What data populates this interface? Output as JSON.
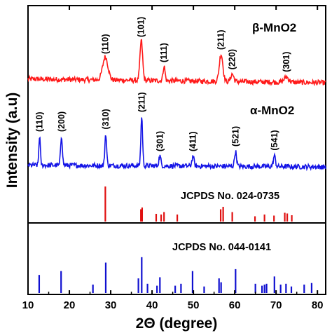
{
  "chart_data": {
    "type": "line",
    "xlabel": "2Θ (degree)",
    "ylabel": "Intensity (a.u)",
    "xlim": [
      10,
      82
    ],
    "xticks": [
      10,
      20,
      30,
      40,
      50,
      60,
      70,
      80
    ],
    "series": [
      {
        "name": "β-MnO2",
        "color": "#ff1a1a",
        "baseline": 0.0,
        "noise": 0.06,
        "peaks": [
          {
            "x": 28.7,
            "h": 0.55,
            "w": 0.9
          },
          {
            "x": 37.4,
            "h": 0.95,
            "w": 0.45
          },
          {
            "x": 42.9,
            "h": 0.35,
            "w": 0.35
          },
          {
            "x": 56.7,
            "h": 0.65,
            "w": 0.6
          },
          {
            "x": 59.4,
            "h": 0.18,
            "w": 0.5
          },
          {
            "x": 72.5,
            "h": 0.12,
            "w": 0.8
          }
        ],
        "annotations": [
          {
            "x": 28.7,
            "label": "(110)"
          },
          {
            "x": 37.4,
            "label": "(101)"
          },
          {
            "x": 42.9,
            "label": "(111)"
          },
          {
            "x": 56.7,
            "label": "(211)"
          },
          {
            "x": 59.4,
            "label": "(220)"
          },
          {
            "x": 72.5,
            "label": "(301)"
          }
        ]
      },
      {
        "name": "α-MnO2",
        "color": "#1414e6",
        "baseline": 0.0,
        "noise": 0.05,
        "peaks": [
          {
            "x": 12.8,
            "h": 0.6,
            "w": 0.25
          },
          {
            "x": 18.1,
            "h": 0.6,
            "w": 0.3
          },
          {
            "x": 28.8,
            "h": 0.65,
            "w": 0.3
          },
          {
            "x": 37.5,
            "h": 1.0,
            "w": 0.3
          },
          {
            "x": 41.9,
            "h": 0.2,
            "w": 0.35
          },
          {
            "x": 49.9,
            "h": 0.2,
            "w": 0.35
          },
          {
            "x": 60.2,
            "h": 0.3,
            "w": 0.35
          },
          {
            "x": 69.6,
            "h": 0.22,
            "w": 0.35
          }
        ],
        "annotations": [
          {
            "x": 12.8,
            "label": "(110)"
          },
          {
            "x": 18.1,
            "label": "(200)"
          },
          {
            "x": 28.8,
            "label": "(310)"
          },
          {
            "x": 37.5,
            "label": "(211)"
          },
          {
            "x": 41.9,
            "label": "(301)"
          },
          {
            "x": 49.9,
            "label": "(411)"
          },
          {
            "x": 60.2,
            "label": "(521)"
          },
          {
            "x": 69.6,
            "label": "(541)"
          }
        ]
      }
    ],
    "reference_patterns": [
      {
        "name": "JCPDS No. 024-0735",
        "color": "#e01010",
        "lines": [
          {
            "x": 28.7,
            "h": 1.0
          },
          {
            "x": 37.3,
            "h": 0.35
          },
          {
            "x": 37.6,
            "h": 0.4
          },
          {
            "x": 41.0,
            "h": 0.22
          },
          {
            "x": 42.2,
            "h": 0.2
          },
          {
            "x": 42.9,
            "h": 0.27
          },
          {
            "x": 46.1,
            "h": 0.2
          },
          {
            "x": 56.6,
            "h": 0.35
          },
          {
            "x": 57.2,
            "h": 0.42
          },
          {
            "x": 59.4,
            "h": 0.27
          },
          {
            "x": 64.9,
            "h": 0.15
          },
          {
            "x": 67.2,
            "h": 0.2
          },
          {
            "x": 69.5,
            "h": 0.17
          },
          {
            "x": 72.1,
            "h": 0.25
          },
          {
            "x": 72.7,
            "h": 0.23
          },
          {
            "x": 73.8,
            "h": 0.18
          }
        ]
      },
      {
        "name": "JCPDS No. 044-0141",
        "color": "#1010d0",
        "lines": [
          {
            "x": 12.7,
            "h": 0.47
          },
          {
            "x": 18.0,
            "h": 0.57
          },
          {
            "x": 25.7,
            "h": 0.22
          },
          {
            "x": 28.8,
            "h": 0.79
          },
          {
            "x": 36.7,
            "h": 0.38
          },
          {
            "x": 37.5,
            "h": 0.93
          },
          {
            "x": 38.9,
            "h": 0.24
          },
          {
            "x": 41.2,
            "h": 0.19
          },
          {
            "x": 41.9,
            "h": 0.41
          },
          {
            "x": 45.6,
            "h": 0.19
          },
          {
            "x": 47.0,
            "h": 0.24
          },
          {
            "x": 49.8,
            "h": 0.57
          },
          {
            "x": 52.6,
            "h": 0.17
          },
          {
            "x": 56.2,
            "h": 0.38
          },
          {
            "x": 56.7,
            "h": 0.28
          },
          {
            "x": 60.2,
            "h": 0.62
          },
          {
            "x": 65.0,
            "h": 0.24
          },
          {
            "x": 66.6,
            "h": 0.19
          },
          {
            "x": 67.2,
            "h": 0.22
          },
          {
            "x": 67.7,
            "h": 0.24
          },
          {
            "x": 69.6,
            "h": 0.43
          },
          {
            "x": 71.1,
            "h": 0.22
          },
          {
            "x": 72.4,
            "h": 0.24
          },
          {
            "x": 73.7,
            "h": 0.17
          },
          {
            "x": 76.8,
            "h": 0.22
          },
          {
            "x": 78.6,
            "h": 0.26
          }
        ]
      }
    ]
  }
}
